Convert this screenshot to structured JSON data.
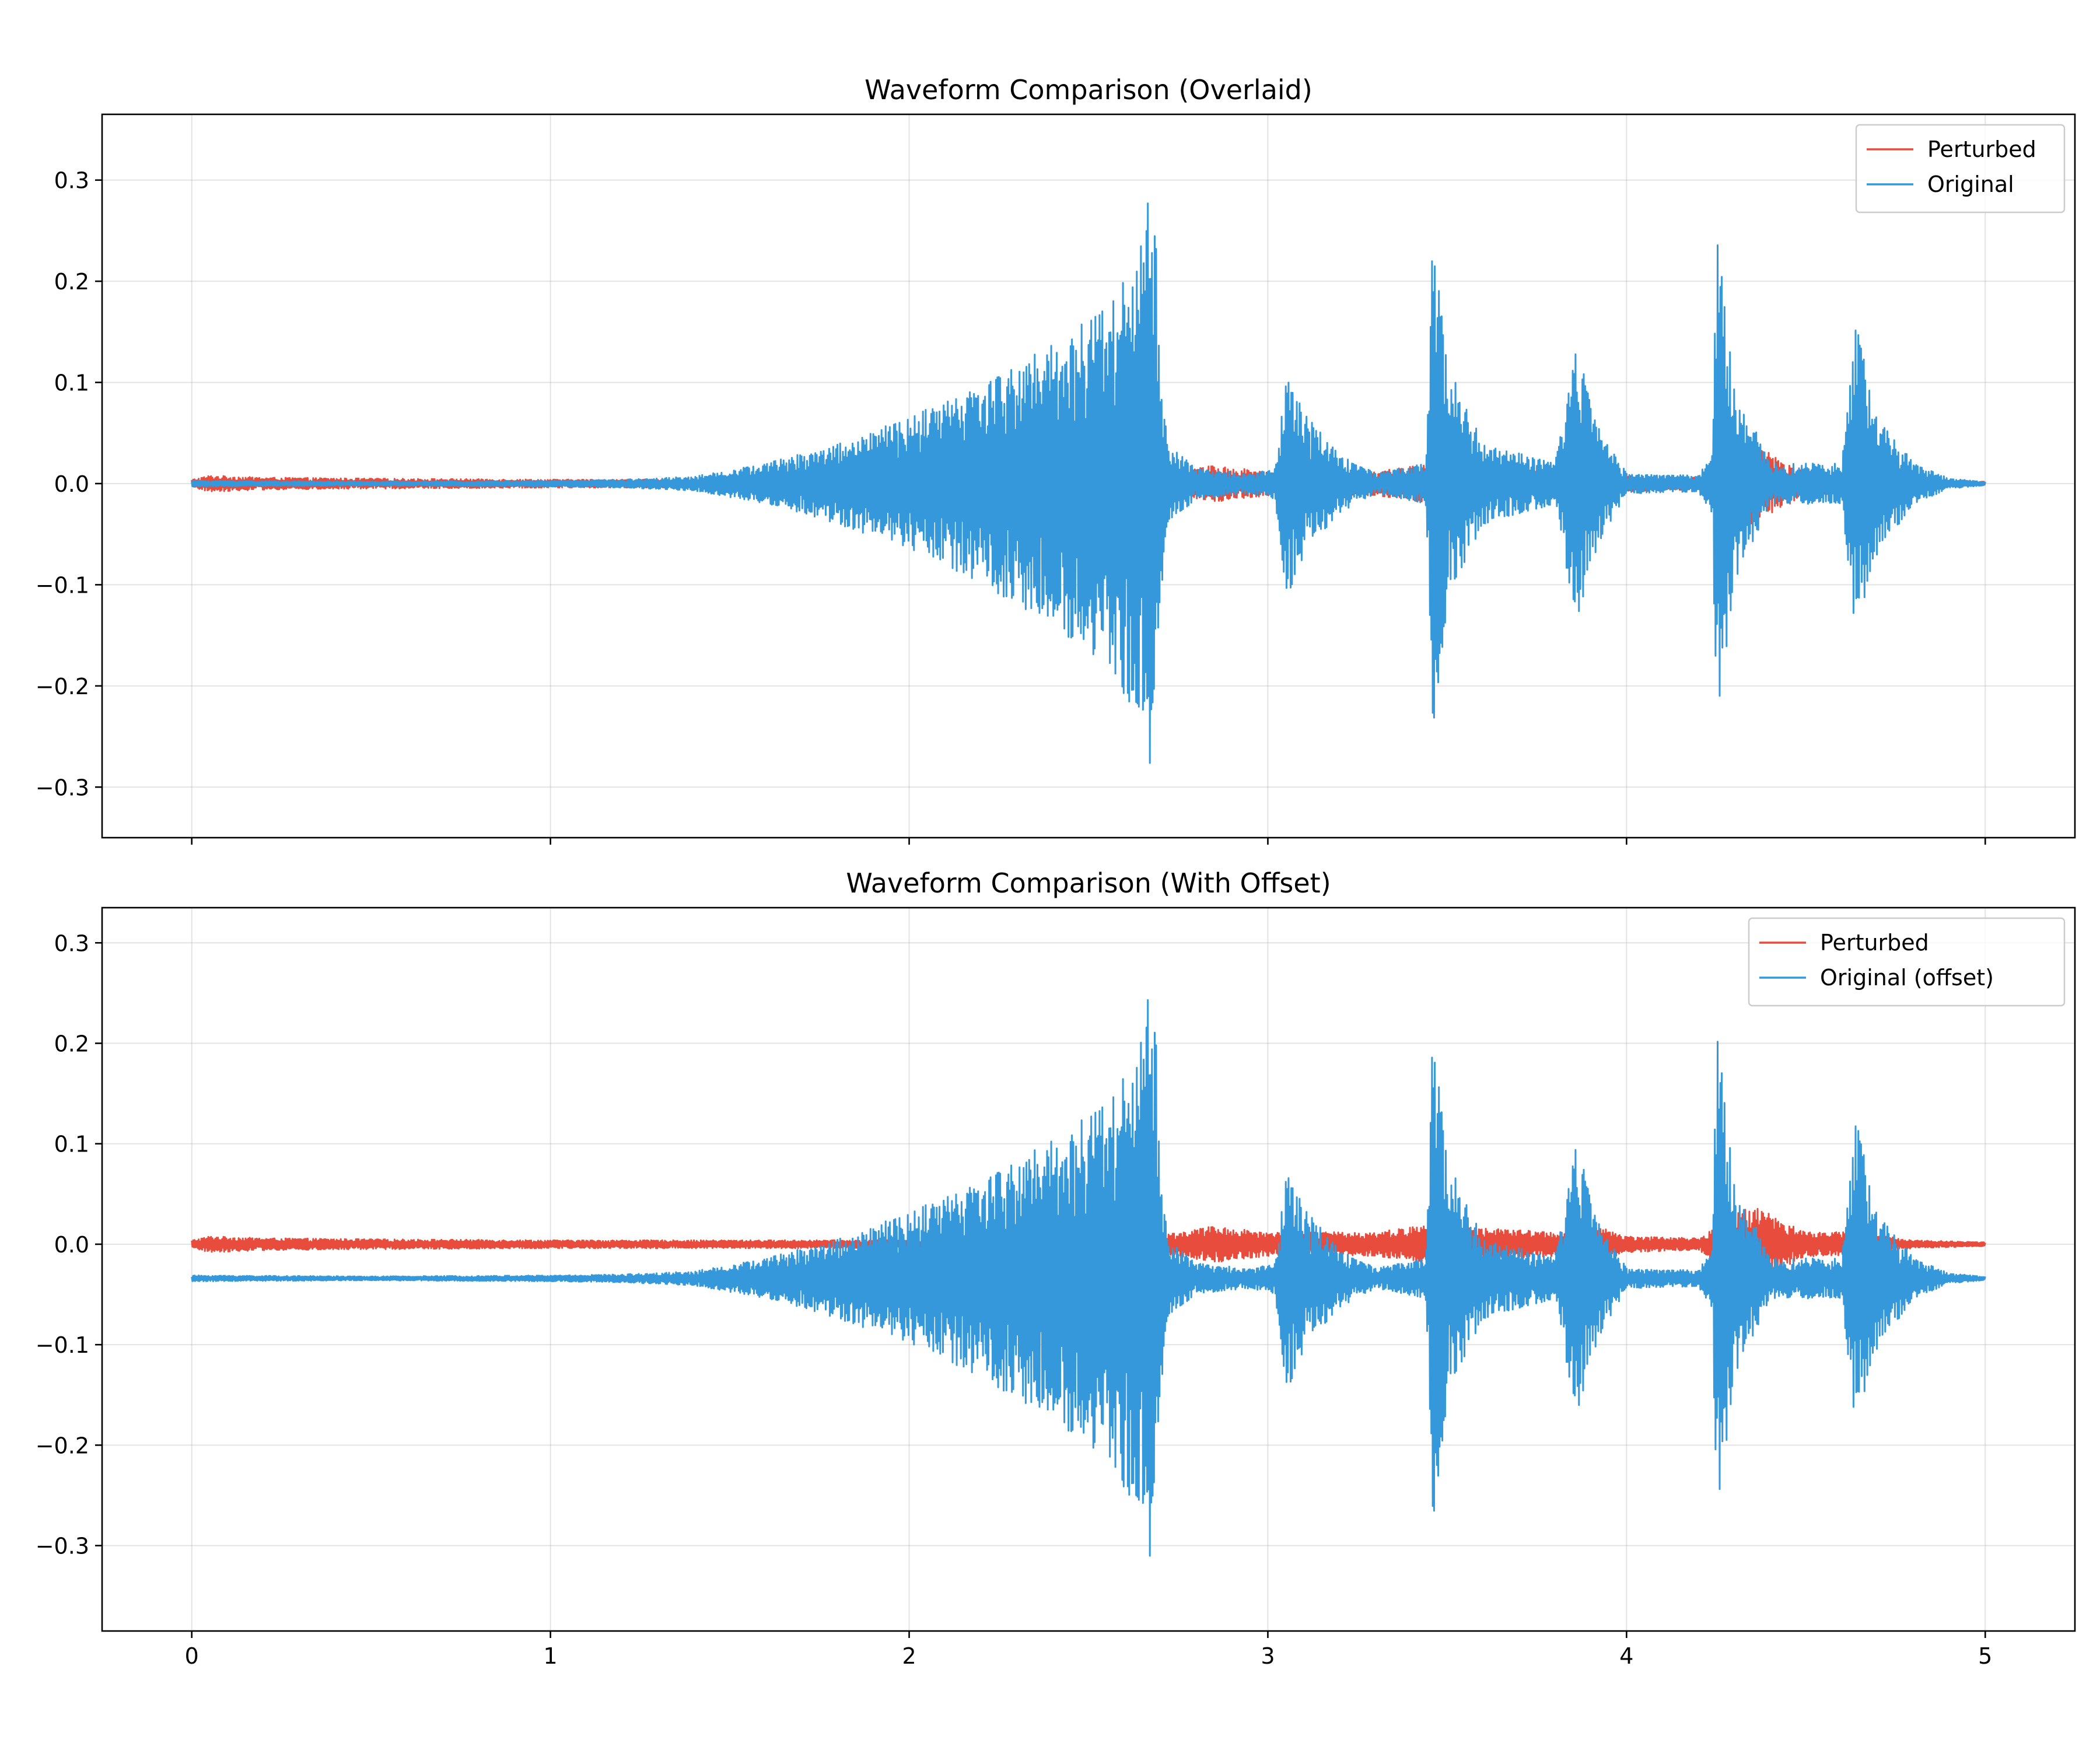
{
  "chart_data": [
    {
      "type": "line",
      "title": "Waveform Comparison (Overlaid)",
      "xlabel": "",
      "ylabel": "",
      "xlim": [
        -0.25,
        5.25
      ],
      "ylim": [
        -0.35,
        0.365
      ],
      "xticks": [
        0,
        1,
        2,
        3,
        4,
        5
      ],
      "xtick_labels": [
        "",
        "",
        "",
        "",
        "",
        ""
      ],
      "yticks": [
        -0.3,
        -0.2,
        -0.1,
        0.0,
        0.1,
        0.2,
        0.3
      ],
      "ytick_labels": [
        "−0.3",
        "−0.2",
        "−0.1",
        "0.0",
        "0.1",
        "0.2",
        "0.3"
      ],
      "grid": true,
      "legend": "top-right",
      "series": [
        {
          "name": "Perturbed",
          "color": "#e74c3c",
          "offset": 0,
          "envelope": [
            [
              0,
              0.004
            ],
            [
              0.05,
              0.008
            ],
            [
              0.2,
              0.006
            ],
            [
              0.5,
              0.005
            ],
            [
              1.0,
              0.004
            ],
            [
              1.3,
              0.004
            ],
            [
              1.6,
              0.004
            ],
            [
              1.9,
              0.004
            ],
            [
              2.2,
              0.004
            ],
            [
              2.5,
              0.004
            ],
            [
              2.68,
              0.004
            ],
            [
              2.72,
              0.01
            ],
            [
              2.85,
              0.018
            ],
            [
              3.0,
              0.012
            ],
            [
              3.1,
              0.012
            ],
            [
              3.3,
              0.012
            ],
            [
              3.46,
              0.02
            ],
            [
              3.6,
              0.016
            ],
            [
              3.8,
              0.012
            ],
            [
              3.92,
              0.018
            ],
            [
              4.0,
              0.008
            ],
            [
              4.2,
              0.006
            ],
            [
              4.35,
              0.04
            ],
            [
              4.5,
              0.012
            ],
            [
              4.66,
              0.012
            ],
            [
              4.72,
              0.008
            ],
            [
              4.8,
              0.004
            ],
            [
              5.0,
              0.002
            ]
          ]
        },
        {
          "name": "Original",
          "color": "#3498db",
          "offset": 0,
          "envelope": [
            [
              0,
              0.003
            ],
            [
              0.5,
              0.002
            ],
            [
              1.0,
              0.003
            ],
            [
              1.2,
              0.004
            ],
            [
              1.4,
              0.007
            ],
            [
              1.6,
              0.02
            ],
            [
              1.8,
              0.04
            ],
            [
              2.0,
              0.065
            ],
            [
              2.2,
              0.1
            ],
            [
              2.4,
              0.14
            ],
            [
              2.55,
              0.18
            ],
            [
              2.65,
              0.24
            ],
            [
              2.68,
              0.32
            ],
            [
              2.7,
              0.12
            ],
            [
              2.72,
              0.04
            ],
            [
              2.8,
              0.015
            ],
            [
              2.95,
              0.01
            ],
            [
              3.02,
              0.015
            ],
            [
              3.05,
              0.12
            ],
            [
              3.1,
              0.07
            ],
            [
              3.2,
              0.03
            ],
            [
              3.3,
              0.01
            ],
            [
              3.44,
              0.02
            ],
            [
              3.46,
              0.26
            ],
            [
              3.5,
              0.12
            ],
            [
              3.6,
              0.04
            ],
            [
              3.8,
              0.02
            ],
            [
              3.86,
              0.14
            ],
            [
              3.92,
              0.06
            ],
            [
              4.0,
              0.01
            ],
            [
              4.2,
              0.008
            ],
            [
              4.24,
              0.03
            ],
            [
              4.25,
              0.26
            ],
            [
              4.3,
              0.1
            ],
            [
              4.4,
              0.02
            ],
            [
              4.6,
              0.02
            ],
            [
              4.64,
              0.16
            ],
            [
              4.7,
              0.07
            ],
            [
              4.8,
              0.02
            ],
            [
              4.9,
              0.005
            ],
            [
              5.0,
              0.002
            ]
          ]
        }
      ]
    },
    {
      "type": "line",
      "title": "Waveform Comparison (With Offset)",
      "xlabel": "",
      "ylabel": "",
      "xlim": [
        -0.25,
        5.25
      ],
      "ylim": [
        -0.385,
        0.335
      ],
      "xticks": [
        0,
        1,
        2,
        3,
        4,
        5
      ],
      "xtick_labels": [
        "0",
        "1",
        "2",
        "3",
        "4",
        "5"
      ],
      "yticks": [
        -0.3,
        -0.2,
        -0.1,
        0.0,
        0.1,
        0.2,
        0.3
      ],
      "ytick_labels": [
        "−0.3",
        "−0.2",
        "−0.1",
        "0.0",
        "0.1",
        "0.2",
        "0.3"
      ],
      "grid": true,
      "legend": "top-right",
      "series": [
        {
          "name": "Perturbed",
          "color": "#e74c3c",
          "offset": 0,
          "envelope": [
            [
              0,
              0.004
            ],
            [
              0.05,
              0.008
            ],
            [
              0.2,
              0.006
            ],
            [
              0.5,
              0.005
            ],
            [
              1.0,
              0.004
            ],
            [
              1.3,
              0.004
            ],
            [
              1.6,
              0.004
            ],
            [
              1.9,
              0.004
            ],
            [
              2.2,
              0.004
            ],
            [
              2.5,
              0.004
            ],
            [
              2.68,
              0.004
            ],
            [
              2.72,
              0.01
            ],
            [
              2.85,
              0.018
            ],
            [
              3.0,
              0.012
            ],
            [
              3.1,
              0.012
            ],
            [
              3.3,
              0.012
            ],
            [
              3.46,
              0.02
            ],
            [
              3.6,
              0.016
            ],
            [
              3.8,
              0.012
            ],
            [
              3.92,
              0.018
            ],
            [
              4.0,
              0.008
            ],
            [
              4.2,
              0.006
            ],
            [
              4.35,
              0.04
            ],
            [
              4.5,
              0.012
            ],
            [
              4.66,
              0.012
            ],
            [
              4.72,
              0.008
            ],
            [
              4.8,
              0.004
            ],
            [
              5.0,
              0.002
            ]
          ]
        },
        {
          "name": "Original (offset)",
          "color": "#3498db",
          "offset": -0.034,
          "envelope": [
            [
              0,
              0.003
            ],
            [
              0.5,
              0.002
            ],
            [
              1.0,
              0.003
            ],
            [
              1.2,
              0.004
            ],
            [
              1.4,
              0.007
            ],
            [
              1.6,
              0.02
            ],
            [
              1.8,
              0.04
            ],
            [
              2.0,
              0.065
            ],
            [
              2.2,
              0.1
            ],
            [
              2.4,
              0.14
            ],
            [
              2.55,
              0.18
            ],
            [
              2.65,
              0.24
            ],
            [
              2.68,
              0.32
            ],
            [
              2.7,
              0.12
            ],
            [
              2.72,
              0.04
            ],
            [
              2.8,
              0.015
            ],
            [
              2.95,
              0.01
            ],
            [
              3.02,
              0.015
            ],
            [
              3.05,
              0.12
            ],
            [
              3.1,
              0.07
            ],
            [
              3.2,
              0.03
            ],
            [
              3.3,
              0.01
            ],
            [
              3.44,
              0.02
            ],
            [
              3.46,
              0.26
            ],
            [
              3.5,
              0.12
            ],
            [
              3.6,
              0.04
            ],
            [
              3.8,
              0.02
            ],
            [
              3.86,
              0.14
            ],
            [
              3.92,
              0.06
            ],
            [
              4.0,
              0.01
            ],
            [
              4.2,
              0.008
            ],
            [
              4.24,
              0.03
            ],
            [
              4.25,
              0.26
            ],
            [
              4.3,
              0.1
            ],
            [
              4.4,
              0.02
            ],
            [
              4.6,
              0.02
            ],
            [
              4.64,
              0.16
            ],
            [
              4.7,
              0.07
            ],
            [
              4.8,
              0.02
            ],
            [
              4.9,
              0.005
            ],
            [
              5.0,
              0.002
            ]
          ]
        }
      ]
    }
  ]
}
